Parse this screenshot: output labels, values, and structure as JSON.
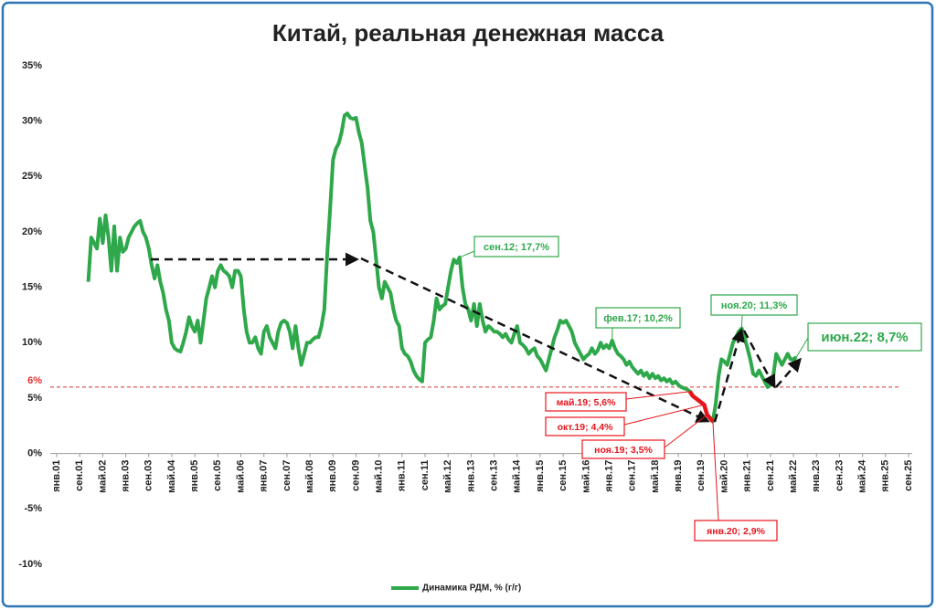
{
  "chart_data": {
    "type": "line",
    "title": "Китай, реальная денежная масса",
    "ylim": [
      -10,
      35
    ],
    "yticks": [
      {
        "value": -10,
        "label": "-10%"
      },
      {
        "value": -5,
        "label": "-5%"
      },
      {
        "value": 0,
        "label": "0%"
      },
      {
        "value": 5,
        "label": "5%"
      },
      {
        "value": 10,
        "label": "10%"
      },
      {
        "value": 15,
        "label": "15%"
      },
      {
        "value": 20,
        "label": "20%"
      },
      {
        "value": 25,
        "label": "25%"
      },
      {
        "value": 30,
        "label": "30%"
      },
      {
        "value": 35,
        "label": "35%"
      }
    ],
    "xlim": [
      "2001-01",
      "2025-09"
    ],
    "xticks": [
      {
        "value": "2001-01",
        "label": "янв.01"
      },
      {
        "value": "2001-09",
        "label": "сен.01"
      },
      {
        "value": "2002-05",
        "label": "май.02"
      },
      {
        "value": "2003-01",
        "label": "янв.03"
      },
      {
        "value": "2003-09",
        "label": "сен.03"
      },
      {
        "value": "2004-05",
        "label": "май.04"
      },
      {
        "value": "2005-01",
        "label": "янв.05"
      },
      {
        "value": "2005-09",
        "label": "сен.05"
      },
      {
        "value": "2006-05",
        "label": "май.06"
      },
      {
        "value": "2007-01",
        "label": "янв.07"
      },
      {
        "value": "2007-09",
        "label": "сен.07"
      },
      {
        "value": "2008-05",
        "label": "май.08"
      },
      {
        "value": "2009-01",
        "label": "янв.09"
      },
      {
        "value": "2009-09",
        "label": "сен.09"
      },
      {
        "value": "2010-05",
        "label": "май.10"
      },
      {
        "value": "2011-01",
        "label": "янв.11"
      },
      {
        "value": "2011-09",
        "label": "сен.11"
      },
      {
        "value": "2012-05",
        "label": "май.12"
      },
      {
        "value": "2013-01",
        "label": "янв.13"
      },
      {
        "value": "2013-09",
        "label": "сен.13"
      },
      {
        "value": "2014-05",
        "label": "май.14"
      },
      {
        "value": "2015-01",
        "label": "янв.15"
      },
      {
        "value": "2015-09",
        "label": "сен.15"
      },
      {
        "value": "2016-05",
        "label": "май.16"
      },
      {
        "value": "2017-01",
        "label": "янв.17"
      },
      {
        "value": "2017-09",
        "label": "сен.17"
      },
      {
        "value": "2018-05",
        "label": "май.18"
      },
      {
        "value": "2019-01",
        "label": "янв.19"
      },
      {
        "value": "2019-09",
        "label": "сен.19"
      },
      {
        "value": "2020-05",
        "label": "май.20"
      },
      {
        "value": "2021-01",
        "label": "янв.21"
      },
      {
        "value": "2021-09",
        "label": "сен.21"
      },
      {
        "value": "2022-05",
        "label": "май.22"
      },
      {
        "value": "2023-01",
        "label": "янв.23"
      },
      {
        "value": "2023-09",
        "label": "сен.23"
      },
      {
        "value": "2024-05",
        "label": "май.24"
      },
      {
        "value": "2025-01",
        "label": "янв.25"
      },
      {
        "value": "2025-09",
        "label": "сен.25"
      }
    ],
    "x": [
      "2001-12",
      "2002-01",
      "2002-02",
      "2002-03",
      "2002-04",
      "2002-05",
      "2002-06",
      "2002-07",
      "2002-08",
      "2002-09",
      "2002-10",
      "2002-11",
      "2002-12",
      "2003-01",
      "2003-02",
      "2003-03",
      "2003-04",
      "2003-05",
      "2003-06",
      "2003-07",
      "2003-08",
      "2003-09",
      "2003-10",
      "2003-11",
      "2003-12",
      "2004-01",
      "2004-02",
      "2004-03",
      "2004-04",
      "2004-05",
      "2004-06",
      "2004-07",
      "2004-08",
      "2004-09",
      "2004-10",
      "2004-11",
      "2004-12",
      "2005-01",
      "2005-02",
      "2005-03",
      "2005-04",
      "2005-05",
      "2005-06",
      "2005-07",
      "2005-08",
      "2005-09",
      "2005-10",
      "2005-11",
      "2005-12",
      "2006-01",
      "2006-02",
      "2006-03",
      "2006-04",
      "2006-05",
      "2006-06",
      "2006-07",
      "2006-08",
      "2006-09",
      "2006-10",
      "2006-11",
      "2006-12",
      "2007-01",
      "2007-02",
      "2007-03",
      "2007-04",
      "2007-05",
      "2007-06",
      "2007-07",
      "2007-08",
      "2007-09",
      "2007-10",
      "2007-11",
      "2007-12",
      "2008-01",
      "2008-02",
      "2008-03",
      "2008-04",
      "2008-05",
      "2008-06",
      "2008-07",
      "2008-08",
      "2008-09",
      "2008-10",
      "2008-11",
      "2008-12",
      "2009-01",
      "2009-02",
      "2009-03",
      "2009-04",
      "2009-05",
      "2009-06",
      "2009-07",
      "2009-08",
      "2009-09",
      "2009-10",
      "2009-11",
      "2009-12",
      "2010-01",
      "2010-02",
      "2010-03",
      "2010-04",
      "2010-05",
      "2010-06",
      "2010-07",
      "2010-08",
      "2010-09",
      "2010-10",
      "2010-11",
      "2010-12",
      "2011-01",
      "2011-02",
      "2011-03",
      "2011-04",
      "2011-05",
      "2011-06",
      "2011-07",
      "2011-08",
      "2011-09",
      "2011-10",
      "2011-11",
      "2011-12",
      "2012-01",
      "2012-02",
      "2012-03",
      "2012-04",
      "2012-05",
      "2012-06",
      "2012-07",
      "2012-08",
      "2012-09",
      "2012-10",
      "2012-11",
      "2012-12",
      "2013-01",
      "2013-02",
      "2013-03",
      "2013-04",
      "2013-05",
      "2013-06",
      "2013-07",
      "2013-08",
      "2013-09",
      "2013-10",
      "2013-11",
      "2013-12",
      "2014-01",
      "2014-02",
      "2014-03",
      "2014-04",
      "2014-05",
      "2014-06",
      "2014-07",
      "2014-08",
      "2014-09",
      "2014-10",
      "2014-11",
      "2014-12",
      "2015-01",
      "2015-02",
      "2015-03",
      "2015-04",
      "2015-05",
      "2015-06",
      "2015-07",
      "2015-08",
      "2015-09",
      "2015-10",
      "2015-11",
      "2015-12",
      "2016-01",
      "2016-02",
      "2016-03",
      "2016-04",
      "2016-05",
      "2016-06",
      "2016-07",
      "2016-08",
      "2016-09",
      "2016-10",
      "2016-11",
      "2016-12",
      "2017-01",
      "2017-02",
      "2017-03",
      "2017-04",
      "2017-05",
      "2017-06",
      "2017-07",
      "2017-08",
      "2017-09",
      "2017-10",
      "2017-11",
      "2017-12",
      "2018-01",
      "2018-02",
      "2018-03",
      "2018-04",
      "2018-05",
      "2018-06",
      "2018-07",
      "2018-08",
      "2018-09",
      "2018-10",
      "2018-11",
      "2018-12",
      "2019-01",
      "2019-02",
      "2019-03",
      "2019-04",
      "2019-05",
      "2019-06",
      "2019-07",
      "2019-08",
      "2019-09",
      "2019-10",
      "2019-11",
      "2019-12",
      "2020-01",
      "2020-02",
      "2020-03",
      "2020-04",
      "2020-05",
      "2020-06",
      "2020-07",
      "2020-08",
      "2020-09",
      "2020-10",
      "2020-11",
      "2020-12",
      "2021-01",
      "2021-02",
      "2021-03",
      "2021-04",
      "2021-05",
      "2021-06",
      "2021-07",
      "2021-08",
      "2021-09",
      "2021-10",
      "2021-11",
      "2021-12",
      "2022-01",
      "2022-02",
      "2022-03",
      "2022-04",
      "2022-05",
      "2022-06"
    ],
    "series": [
      {
        "name": "Динамика РДМ, % (г/г)",
        "color": "#2ea84a",
        "values": [
          15.5,
          19.5,
          19.0,
          18.5,
          21.2,
          19.0,
          21.5,
          19.5,
          16.5,
          20.5,
          16.5,
          19.5,
          18.2,
          18.5,
          19.5,
          20.0,
          20.5,
          20.8,
          21.0,
          20.0,
          19.5,
          18.5,
          17.0,
          15.8,
          17.0,
          15.5,
          14.5,
          13.0,
          12.0,
          10.0,
          9.5,
          9.3,
          9.2,
          10.0,
          11.0,
          12.3,
          11.5,
          11.0,
          12.0,
          10.0,
          12.0,
          14.0,
          15.0,
          16.0,
          15.0,
          16.5,
          17.0,
          16.5,
          16.3,
          16.0,
          15.0,
          16.5,
          16.5,
          16.0,
          13.0,
          11.0,
          10.0,
          10.0,
          10.5,
          9.5,
          9.0,
          11.0,
          11.5,
          10.5,
          10.0,
          9.5,
          11.0,
          11.8,
          12.0,
          11.8,
          11.0,
          9.5,
          11.5,
          9.5,
          8.0,
          9.0,
          10.0,
          10.0,
          10.3,
          10.5,
          10.5,
          11.5,
          13.0,
          18.0,
          22.0,
          26.5,
          27.5,
          28.0,
          29.0,
          30.5,
          30.7,
          30.3,
          30.2,
          30.3,
          29.0,
          28.0,
          26.0,
          24.0,
          21.0,
          20.0,
          17.5,
          15.0,
          14.0,
          15.5,
          15.0,
          14.5,
          13.0,
          12.0,
          11.5,
          9.5,
          9.0,
          8.8,
          8.3,
          7.5,
          7.0,
          6.7,
          6.5,
          10.0,
          10.3,
          10.5,
          12.0,
          14.0,
          13.0,
          13.3,
          13.5,
          15.0,
          16.5,
          17.5,
          17.2,
          17.7,
          15.0,
          13.5,
          13.0,
          12.0,
          13.5,
          11.5,
          13.5,
          12.0,
          11.0,
          11.5,
          11.3,
          11.0,
          11.0,
          10.8,
          10.5,
          10.8,
          10.3,
          10.0,
          10.8,
          11.5,
          10.0,
          9.8,
          9.5,
          9.0,
          9.3,
          9.5,
          8.8,
          8.5,
          8.0,
          7.5,
          8.5,
          9.5,
          10.5,
          11.2,
          12.0,
          11.8,
          12.0,
          11.5,
          11.0,
          10.0,
          9.5,
          9.0,
          8.5,
          8.8,
          9.0,
          9.5,
          9.0,
          9.3,
          10.0,
          9.5,
          9.8,
          9.5,
          10.2,
          9.5,
          9.0,
          8.8,
          8.5,
          8.0,
          8.3,
          7.8,
          7.5,
          7.2,
          7.5,
          7.0,
          7.3,
          6.8,
          7.2,
          6.8,
          7.0,
          6.6,
          6.8,
          6.5,
          6.7,
          6.3,
          6.5,
          6.2,
          6.0,
          5.9,
          5.8,
          5.6,
          5.2,
          5.0,
          4.8,
          4.6,
          4.4,
          3.5,
          3.2,
          2.9,
          4.5,
          7.0,
          8.5,
          8.3,
          8.0,
          9.0,
          10.0,
          10.5,
          11.0,
          11.3,
          10.5,
          9.5,
          8.5,
          7.2,
          7.0,
          7.5,
          7.0,
          6.5,
          6.0,
          6.2,
          7.0,
          9.0,
          8.5,
          8.0,
          8.5,
          9.0,
          8.5,
          8.5,
          8.7
        ]
      }
    ],
    "highlight": {
      "from": "2019-05",
      "to": "2020-01",
      "color": "#e8141b"
    },
    "reference_line": {
      "value": 6,
      "label": "6%",
      "color": "#e03030"
    },
    "annotations": [
      {
        "text": "сен.12; 17,7%",
        "x": "2012-09",
        "color": "#2ea84a"
      },
      {
        "text": "фев.17; 10,2%",
        "x": "2017-02",
        "color": "#2ea84a"
      },
      {
        "text": "ноя.20; 11,3%",
        "x": "2020-11",
        "color": "#2ea84a"
      },
      {
        "text": "июн.22; 8,7%",
        "x": "2022-06",
        "color": "#2ea84a"
      },
      {
        "text": "май.19; 5,6%",
        "x": "2019-05",
        "color": "#e8141b"
      },
      {
        "text": "окт.19; 4,4%",
        "x": "2019-10",
        "color": "#e8141b"
      },
      {
        "text": "ноя.19; 3,5%",
        "x": "2019-11",
        "color": "#e8141b"
      },
      {
        "text": "янв.20; 2,9%",
        "x": "2020-01",
        "color": "#e8141b"
      }
    ],
    "legend": "bottom",
    "grid": false
  }
}
